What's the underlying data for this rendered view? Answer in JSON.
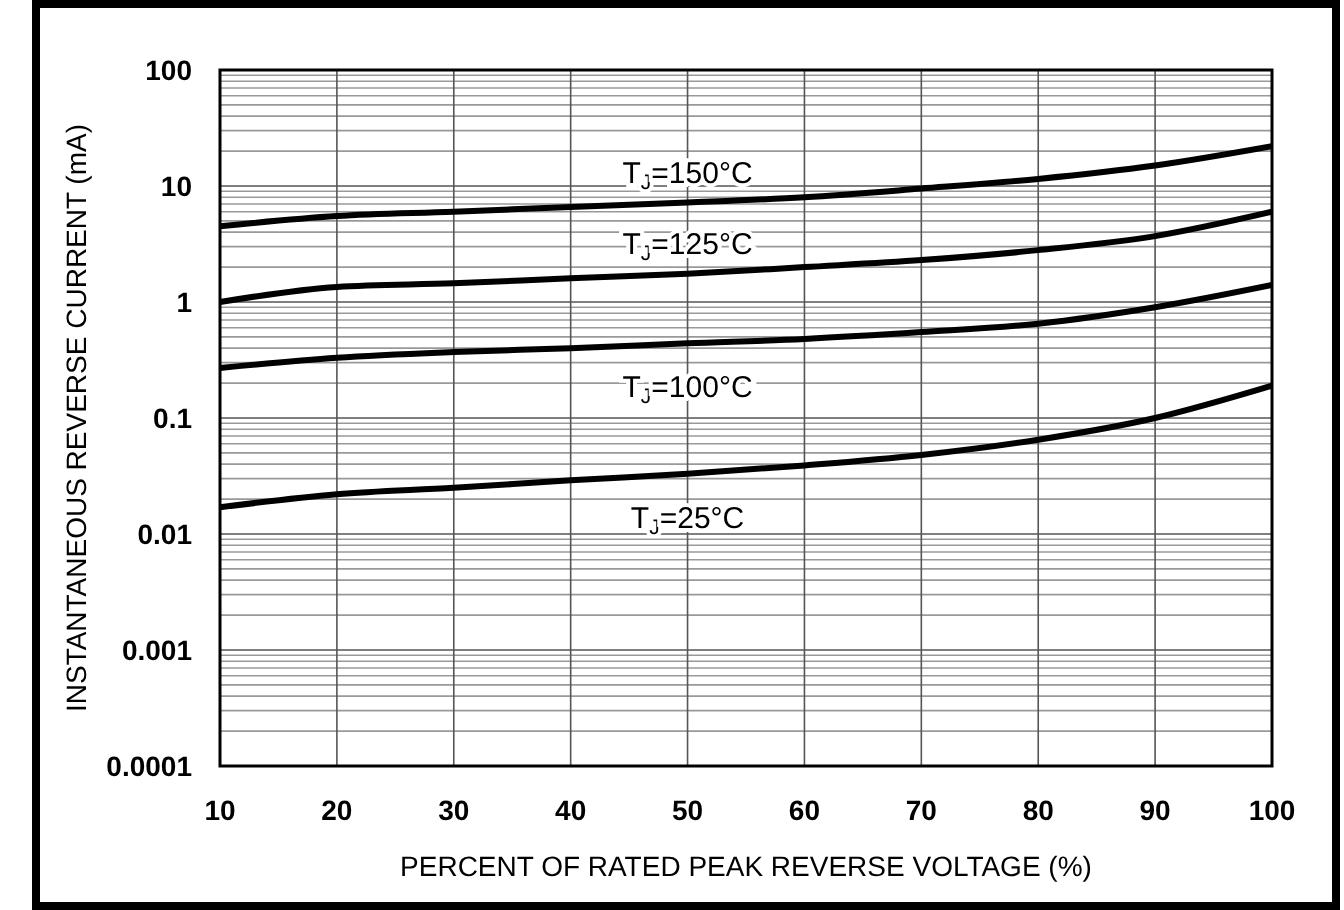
{
  "chart_data": {
    "type": "line",
    "xlabel": "PERCENT OF RATED PEAK REVERSE VOLTAGE (%)",
    "ylabel": "INSTANTANEOUS REVERSE CURRENT (mA)",
    "x": [
      10,
      20,
      30,
      40,
      50,
      60,
      70,
      80,
      90,
      100
    ],
    "series": [
      {
        "name": "T$_{J}$=150°C",
        "color": "#000000",
        "values": [
          4.5,
          5.5,
          6,
          6.6,
          7.2,
          8,
          9.5,
          11.5,
          15,
          22
        ]
      },
      {
        "name": "T$_{J}$=125°C",
        "color": "#000000",
        "values": [
          1.0,
          1.35,
          1.45,
          1.6,
          1.75,
          2.0,
          2.3,
          2.8,
          3.7,
          6
        ]
      },
      {
        "name": "T$_{J}$=100°C",
        "color": "#000000",
        "values": [
          0.27,
          0.33,
          0.37,
          0.4,
          0.44,
          0.48,
          0.55,
          0.65,
          0.9,
          1.4
        ]
      },
      {
        "name": "T$_{J}$=25°C",
        "color": "#000000",
        "values": [
          0.017,
          0.022,
          0.025,
          0.029,
          0.033,
          0.039,
          0.048,
          0.065,
          0.1,
          0.19
        ]
      }
    ],
    "xlim": [
      10,
      100
    ],
    "xticks": [
      10,
      20,
      30,
      40,
      50,
      60,
      70,
      80,
      90,
      100
    ],
    "ylim": [
      0.0001,
      100
    ],
    "yticks": [
      0.0001,
      0.001,
      0.01,
      0.1,
      1,
      10,
      100
    ],
    "log": "y",
    "grid": true,
    "legend": false,
    "marker": "none",
    "line_style": "solid"
  }
}
